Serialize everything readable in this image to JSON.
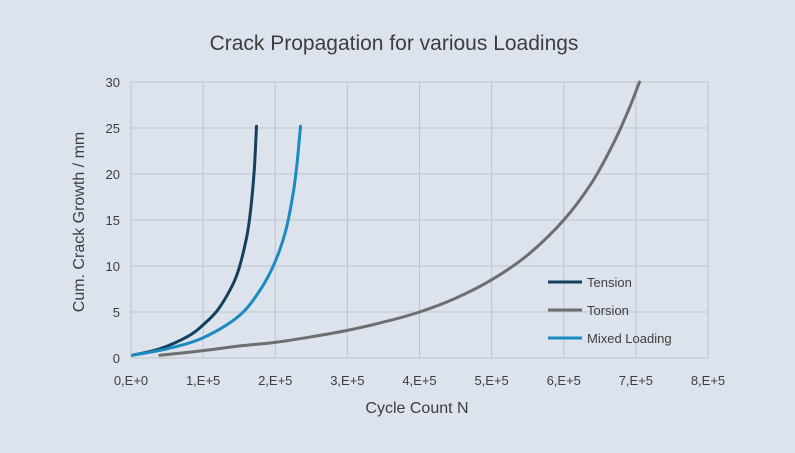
{
  "chart_data": {
    "type": "line",
    "title": "Crack Propagation for various Loadings",
    "xlabel": "Cycle Count N",
    "ylabel": "Cum. Crack Growth / mm",
    "xlim": [
      0,
      800000
    ],
    "ylim": [
      0,
      30
    ],
    "x_ticks": [
      0,
      100000,
      200000,
      300000,
      400000,
      500000,
      600000,
      700000,
      800000
    ],
    "x_tick_labels": [
      "0,E+0",
      "1,E+5",
      "2,E+5",
      "3,E+5",
      "4,E+5",
      "5,E+5",
      "6,E+5",
      "7,E+5",
      "8,E+5"
    ],
    "y_ticks": [
      0,
      5,
      10,
      15,
      20,
      25,
      30
    ],
    "y_tick_labels": [
      "0",
      "5",
      "10",
      "15",
      "20",
      "25",
      "30"
    ],
    "grid": true,
    "legend_position": "bottom-right",
    "series": [
      {
        "name": "Tension",
        "color": "#14405e",
        "x": [
          2000,
          40000,
          80000,
          100000,
          120000,
          140000,
          150000,
          160000,
          165000,
          170000,
          172000,
          174000
        ],
        "y": [
          0.3,
          1.0,
          2.4,
          3.6,
          5.2,
          7.8,
          9.8,
          13.0,
          15.5,
          19.5,
          22.0,
          25.2
        ]
      },
      {
        "name": "Torsion",
        "color": "#6e6e6e",
        "x": [
          40000,
          100000,
          150000,
          200000,
          250000,
          300000,
          350000,
          400000,
          450000,
          500000,
          550000,
          600000,
          640000,
          670000,
          690000,
          705000
        ],
        "y": [
          0.3,
          0.8,
          1.3,
          1.7,
          2.3,
          3.0,
          3.9,
          5.0,
          6.5,
          8.5,
          11.2,
          15.0,
          19.2,
          23.5,
          27.0,
          30.0
        ]
      },
      {
        "name": "Mixed Loading",
        "color": "#1b8bc0",
        "x": [
          2000,
          50000,
          100000,
          150000,
          180000,
          200000,
          215000,
          225000,
          230000,
          233000,
          235000
        ],
        "y": [
          0.3,
          1.0,
          2.2,
          4.6,
          7.5,
          10.5,
          14.0,
          18.0,
          21.0,
          23.5,
          25.2
        ]
      }
    ]
  }
}
